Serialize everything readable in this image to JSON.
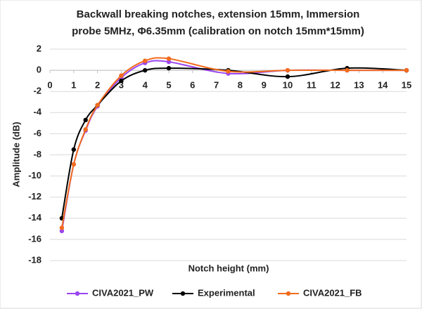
{
  "chart_data": {
    "type": "line",
    "title": [
      "Backwall breaking notches, extension 15mm, Immersion",
      "probe 5MHz, Φ6.35mm (calibration on notch 15mm*15mm)"
    ],
    "x_label": "Notch height (mm)",
    "y_label": "Amplitude (dB)",
    "x": [
      0.5,
      1,
      1.5,
      2,
      3,
      4,
      5,
      7.5,
      10,
      12.5,
      15
    ],
    "series": [
      {
        "name": "CIVA2021_PW",
        "color": "#9b45f0",
        "values": [
          -15.2,
          -8.9,
          -5.7,
          -3.4,
          -0.7,
          0.7,
          0.8,
          -0.3,
          0,
          0,
          0
        ]
      },
      {
        "name": "Experimental",
        "color": "#000000",
        "values": [
          -14,
          -7.5,
          -4.7,
          -3.3,
          -1,
          0,
          0.2,
          0,
          -0.6,
          0.2,
          0
        ]
      },
      {
        "name": "CIVA2021_FB",
        "color": "#f26b1d",
        "values": [
          -14.9,
          -8.9,
          -5.6,
          -3.3,
          -0.5,
          0.9,
          1.1,
          -0.1,
          0,
          0,
          0
        ]
      }
    ],
    "xlim": [
      0,
      15
    ],
    "xticks": [
      0,
      1,
      2,
      3,
      4,
      5,
      6,
      7,
      8,
      9,
      10,
      11,
      12,
      13,
      14,
      15
    ],
    "ylim": [
      -18,
      2
    ],
    "yticks": [
      -18,
      -16,
      -14,
      -12,
      -10,
      -8,
      -6,
      -4,
      -2,
      0,
      2
    ],
    "grid": true,
    "smooth": true,
    "legend": "bottom"
  }
}
